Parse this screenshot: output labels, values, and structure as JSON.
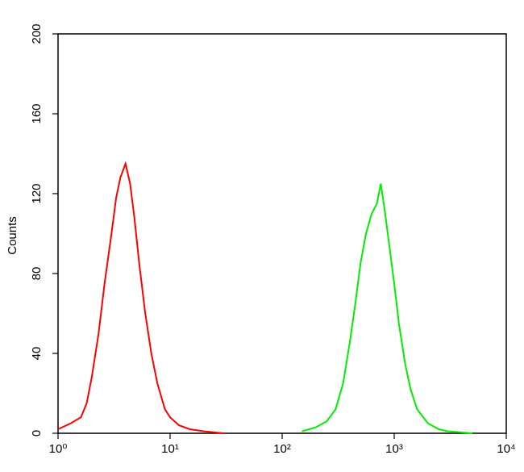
{
  "chart_data": {
    "type": "line",
    "y_label": "Counts",
    "xscale": "log",
    "xlim": [
      1,
      10000
    ],
    "xticks": [
      {
        "value": 1,
        "label": "10⁰"
      },
      {
        "value": 10,
        "label": "10¹"
      },
      {
        "value": 100,
        "label": "10²"
      },
      {
        "value": 1000,
        "label": "10³"
      },
      {
        "value": 10000,
        "label": "10⁴"
      }
    ],
    "ylim": [
      0,
      200
    ],
    "yticks": [
      0,
      40,
      80,
      120,
      160,
      200
    ],
    "series": [
      {
        "color": "#ff0000",
        "x": [
          1,
          1.3,
          1.6,
          1.8,
          2,
          2.3,
          2.6,
          3,
          3.3,
          3.6,
          4,
          4.4,
          4.8,
          5.3,
          6,
          6.8,
          7.7,
          9,
          10,
          12,
          15,
          20,
          30
        ],
        "values": [
          2,
          5,
          8,
          15,
          28,
          50,
          75,
          100,
          118,
          128,
          135,
          125,
          108,
          85,
          60,
          40,
          25,
          12,
          8,
          4,
          2,
          1,
          0
        ]
      },
      {
        "color": "#00ee00",
        "x": [
          150,
          200,
          250,
          300,
          350,
          400,
          450,
          500,
          560,
          630,
          700,
          760,
          830,
          900,
          1000,
          1100,
          1250,
          1400,
          1600,
          2000,
          2500,
          3000,
          5000
        ],
        "values": [
          1,
          3,
          6,
          12,
          25,
          45,
          65,
          85,
          100,
          110,
          115,
          125,
          110,
          95,
          75,
          55,
          35,
          22,
          12,
          5,
          2,
          1,
          0
        ]
      }
    ]
  }
}
